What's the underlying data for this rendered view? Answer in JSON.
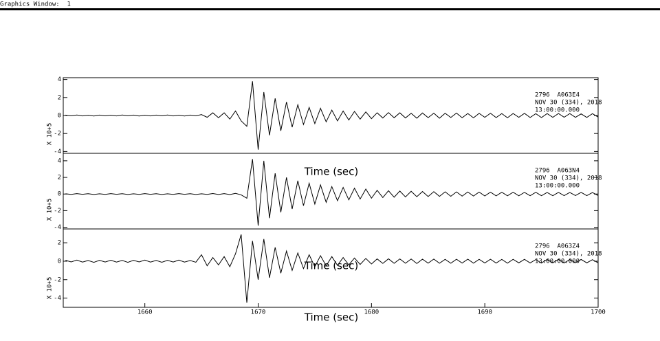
{
  "window_title": "Graphics Window:  1",
  "chart_data": [
    {
      "type": "line",
      "station": "2796  A063E4",
      "date": "NOV 30 (334), 2018",
      "time": "13:00:00.000",
      "ylabel": "X 10+5",
      "xlabel": "Time (sec)",
      "color": "#000000",
      "xlim": [
        1652.8,
        1700
      ],
      "ylim": [
        -4.2,
        4.2
      ],
      "yticks": [
        -4,
        -2,
        0,
        2,
        4
      ],
      "x": [
        1653,
        1653.5,
        1654,
        1654.5,
        1655,
        1655.5,
        1656,
        1656.5,
        1657,
        1657.5,
        1658,
        1658.5,
        1659,
        1659.5,
        1660,
        1660.5,
        1661,
        1661.5,
        1662,
        1662.5,
        1663,
        1663.5,
        1664,
        1664.5,
        1665,
        1665.5,
        1666,
        1666.5,
        1667,
        1667.5,
        1668,
        1668.5,
        1669,
        1669.5,
        1670,
        1670.5,
        1671,
        1671.5,
        1672,
        1672.5,
        1673,
        1673.5,
        1674,
        1674.5,
        1675,
        1675.5,
        1676,
        1676.5,
        1677,
        1677.5,
        1678,
        1678.5,
        1679,
        1679.5,
        1680,
        1680.5,
        1681,
        1681.5,
        1682,
        1682.5,
        1683,
        1683.5,
        1684,
        1684.5,
        1685,
        1685.5,
        1686,
        1686.5,
        1687,
        1687.5,
        1688,
        1688.5,
        1689,
        1689.5,
        1690,
        1690.5,
        1691,
        1691.5,
        1692,
        1692.5,
        1693,
        1693.5,
        1694,
        1694.5,
        1695,
        1695.5,
        1696,
        1696.5,
        1697,
        1697.5,
        1698,
        1698.5,
        1699,
        1699.5,
        1700
      ],
      "values": [
        0.05,
        -0.04,
        0.06,
        -0.05,
        0.03,
        -0.06,
        0.05,
        -0.04,
        0.04,
        -0.05,
        0.06,
        -0.03,
        0.05,
        -0.06,
        0.04,
        -0.05,
        0.05,
        -0.04,
        0.06,
        -0.05,
        0.04,
        -0.06,
        0.05,
        -0.04,
        0.1,
        -0.2,
        0.3,
        -0.25,
        0.3,
        -0.4,
        0.5,
        -0.6,
        -1.2,
        3.8,
        -3.8,
        2.6,
        -2.2,
        1.9,
        -1.7,
        1.5,
        -1.3,
        1.2,
        -1.0,
        0.9,
        -0.9,
        0.8,
        -0.7,
        0.6,
        -0.6,
        0.5,
        -0.5,
        0.45,
        -0.4,
        0.4,
        -0.35,
        0.3,
        -0.28,
        0.32,
        -0.25,
        0.3,
        -0.27,
        0.25,
        -0.3,
        0.28,
        -0.24,
        0.26,
        -0.3,
        0.25,
        -0.22,
        0.27,
        -0.25,
        0.22,
        -0.26,
        0.24,
        -0.2,
        0.25,
        -0.23,
        0.21,
        -0.25,
        0.22,
        -0.2,
        0.24,
        -0.22,
        0.2,
        -0.23,
        0.21,
        -0.2,
        0.22,
        -0.19,
        0.21,
        -0.2,
        0.18,
        -0.21,
        0.2,
        -0.18
      ]
    },
    {
      "type": "line",
      "station": "2796  A063N4",
      "date": "NOV 30 (334), 2018",
      "time": "13:00:00.000",
      "ylabel": "X 10+5",
      "xlabel": "Time (sec)",
      "color": "#000000",
      "xlim": [
        1652.8,
        1700
      ],
      "ylim": [
        -4.2,
        4.9
      ],
      "yticks": [
        -4,
        -2,
        0,
        2,
        4
      ],
      "x": [
        1653,
        1653.5,
        1654,
        1654.5,
        1655,
        1655.5,
        1656,
        1656.5,
        1657,
        1657.5,
        1658,
        1658.5,
        1659,
        1659.5,
        1660,
        1660.5,
        1661,
        1661.5,
        1662,
        1662.5,
        1663,
        1663.5,
        1664,
        1664.5,
        1665,
        1665.5,
        1666,
        1666.5,
        1667,
        1667.5,
        1668,
        1668.5,
        1669,
        1669.5,
        1670,
        1670.5,
        1671,
        1671.5,
        1672,
        1672.5,
        1673,
        1673.5,
        1674,
        1674.5,
        1675,
        1675.5,
        1676,
        1676.5,
        1677,
        1677.5,
        1678,
        1678.5,
        1679,
        1679.5,
        1680,
        1680.5,
        1681,
        1681.5,
        1682,
        1682.5,
        1683,
        1683.5,
        1684,
        1684.5,
        1685,
        1685.5,
        1686,
        1686.5,
        1687,
        1687.5,
        1688,
        1688.5,
        1689,
        1689.5,
        1690,
        1690.5,
        1691,
        1691.5,
        1692,
        1692.5,
        1693,
        1693.5,
        1694,
        1694.5,
        1695,
        1695.5,
        1696,
        1696.5,
        1697,
        1697.5,
        1698,
        1698.5,
        1699,
        1699.5,
        1700
      ],
      "values": [
        0.03,
        -0.04,
        0.05,
        -0.03,
        0.04,
        -0.05,
        0.03,
        -0.04,
        0.05,
        -0.03,
        0.04,
        -0.05,
        0.03,
        -0.04,
        0.05,
        -0.03,
        0.04,
        -0.05,
        0.03,
        -0.04,
        0.05,
        -0.03,
        0.04,
        -0.05,
        0.03,
        -0.04,
        0.06,
        -0.05,
        0.05,
        -0.06,
        0.08,
        -0.1,
        -0.5,
        4.2,
        -3.8,
        4.0,
        -2.9,
        2.5,
        -2.2,
        2.0,
        -1.8,
        1.6,
        -1.4,
        1.3,
        -1.2,
        1.1,
        -1.0,
        0.9,
        -0.8,
        0.8,
        -0.7,
        0.7,
        -0.6,
        0.6,
        -0.5,
        0.45,
        -0.42,
        0.4,
        -0.38,
        0.36,
        -0.35,
        0.33,
        -0.32,
        0.3,
        -0.3,
        0.29,
        -0.28,
        0.27,
        -0.27,
        0.26,
        -0.25,
        0.25,
        -0.24,
        0.24,
        -0.23,
        0.23,
        -0.22,
        0.22,
        -0.21,
        0.22,
        -0.21,
        0.2,
        -0.2,
        0.21,
        -0.2,
        0.19,
        -0.2,
        0.2,
        -0.19,
        0.19,
        -0.18,
        0.2,
        -0.19,
        0.18,
        -0.18
      ]
    },
    {
      "type": "line",
      "station": "2796  A063Z4",
      "date": "NOV 30 (334), 2018",
      "time": "13:00:00.000",
      "ylabel": "X 10+5",
      "xlabel": "Time (sec)",
      "color": "#000000",
      "xlim": [
        1652.8,
        1700
      ],
      "ylim": [
        -5,
        3.5
      ],
      "yticks": [
        -4,
        -2,
        0,
        2
      ],
      "xticks": [
        1660,
        1670,
        1680,
        1690,
        1700
      ],
      "x": [
        1653,
        1653.5,
        1654,
        1654.5,
        1655,
        1655.5,
        1656,
        1656.5,
        1657,
        1657.5,
        1658,
        1658.5,
        1659,
        1659.5,
        1660,
        1660.5,
        1661,
        1661.5,
        1662,
        1662.5,
        1663,
        1663.5,
        1664,
        1664.5,
        1665,
        1665.5,
        1666,
        1666.5,
        1667,
        1667.5,
        1668,
        1668.5,
        1669,
        1669.5,
        1670,
        1670.5,
        1671,
        1671.5,
        1672,
        1672.5,
        1673,
        1673.5,
        1674,
        1674.5,
        1675,
        1675.5,
        1676,
        1676.5,
        1677,
        1677.5,
        1678,
        1678.5,
        1679,
        1679.5,
        1680,
        1680.5,
        1681,
        1681.5,
        1682,
        1682.5,
        1683,
        1683.5,
        1684,
        1684.5,
        1685,
        1685.5,
        1686,
        1686.5,
        1687,
        1687.5,
        1688,
        1688.5,
        1689,
        1689.5,
        1690,
        1690.5,
        1691,
        1691.5,
        1692,
        1692.5,
        1693,
        1693.5,
        1694,
        1694.5,
        1695,
        1695.5,
        1696,
        1696.5,
        1697,
        1697.5,
        1698,
        1698.5,
        1699,
        1699.5,
        1700
      ],
      "values": [
        0.1,
        -0.08,
        0.12,
        -0.1,
        0.08,
        -0.12,
        0.1,
        -0.09,
        0.11,
        -0.1,
        0.09,
        -0.12,
        0.1,
        -0.08,
        0.12,
        -0.1,
        0.09,
        -0.11,
        0.1,
        -0.09,
        0.12,
        -0.1,
        0.08,
        -0.11,
        0.7,
        -0.5,
        0.4,
        -0.4,
        0.5,
        -0.6,
        0.8,
        2.9,
        -4.5,
        2.2,
        -2.0,
        2.4,
        -1.8,
        1.5,
        -1.3,
        1.1,
        -1.0,
        0.9,
        -0.8,
        0.7,
        -0.6,
        0.6,
        -0.5,
        0.5,
        -0.45,
        0.4,
        -0.4,
        0.35,
        -0.35,
        0.3,
        -0.3,
        0.25,
        -0.24,
        0.26,
        -0.23,
        0.25,
        -0.22,
        0.24,
        -0.25,
        0.22,
        -0.21,
        0.23,
        -0.22,
        0.2,
        -0.22,
        0.21,
        -0.2,
        0.22,
        -0.21,
        0.2,
        -0.19,
        0.21,
        -0.2,
        0.19,
        -0.21,
        0.2,
        -0.18,
        0.2,
        -0.19,
        0.18,
        -0.2,
        0.19,
        -0.18,
        0.2,
        -0.19,
        0.18,
        -0.17,
        0.19,
        -0.18,
        0.17,
        -0.18
      ]
    }
  ]
}
